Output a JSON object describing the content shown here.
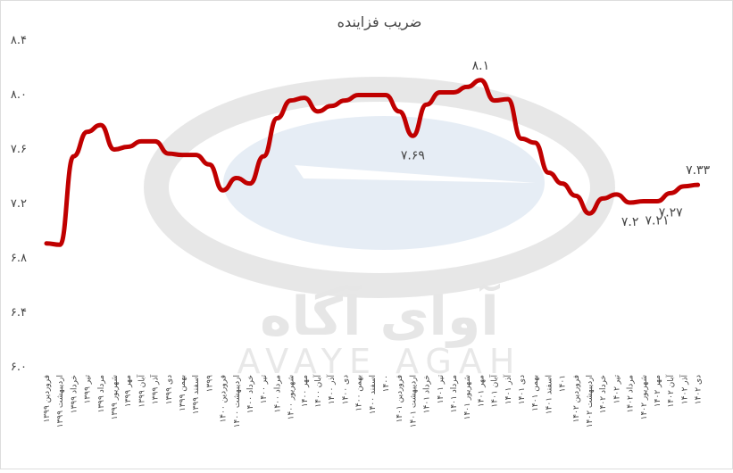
{
  "chart_data": {
    "type": "line",
    "title": "ضریب فزاینده",
    "watermark": [
      "آوای آگاه",
      "AVAYE AGAH"
    ],
    "categories": [
      "فروردین ۱۳۹۹",
      "اردیبهشت ۱۳۹۹",
      "خرداد ۱۳۹۹",
      "تیر ۱۳۹۹",
      "مرداد ۱۳۹۹",
      "شهریور ۱۳۹۹",
      "مهر ۱۳۹۹",
      "آبان ۱۳۹۹",
      "آذر ۱۳۹۹",
      "دی ۱۳۹۹",
      "بهمن ۱۳۹۹",
      "اسفند ۱۳۹۹",
      "۱۳۹۹",
      "فروردین ۱۴۰۰",
      "اردیبهشت ۱۴۰۰",
      "خرداد ۱۴۰۰",
      "تیر ۱۴۰۰",
      "مرداد ۱۴۰۰",
      "شهریور ۱۴۰۰",
      "مهر ۱۴۰۰",
      "آبان ۱۴۰۰",
      "آذر ۱۴۰۰",
      "دی ۱۴۰۰",
      "بهمن ۱۴۰۰",
      "اسفند ۱۴۰۰",
      "۱۴۰۰",
      "فروردین ۱۴۰۱",
      "اردیبهشت ۱۴۰۱",
      "خرداد ۱۴۰۱",
      "تیر ۱۴۰۱",
      "مرداد ۱۴۰۱",
      "شهریور ۱۴۰۱",
      "مهر ۱۴۰۱",
      "آبان ۱۴۰۱",
      "آذر ۱۴۰۱",
      "دی ۱۴۰۱",
      "بهمن ۱۴۰۱",
      "اسفند ۱۴۰۱",
      "۱۴۰۱",
      "فروردین ۱۴۰۲",
      "اردیبهشت ۱۴۰۲",
      "خرداد ۱۴۰۲",
      "تیر ۱۴۰۲",
      "مرداد ۱۴۰۲",
      "شهریور ۱۴۰۲",
      "مهر ۱۴۰۲",
      "آبان ۱۴۰۲",
      "آذر ۱۴۰۲",
      "دی ۱۴۰۲"
    ],
    "values": [
      6.9,
      6.89,
      7.54,
      7.72,
      7.77,
      7.59,
      7.61,
      7.65,
      7.65,
      7.56,
      7.55,
      7.55,
      7.48,
      7.29,
      7.38,
      7.34,
      7.54,
      7.82,
      7.95,
      7.97,
      7.87,
      7.91,
      7.95,
      7.99,
      7.99,
      7.99,
      7.87,
      7.69,
      7.92,
      8.01,
      8.01,
      8.05,
      8.1,
      7.95,
      7.96,
      7.67,
      7.64,
      7.42,
      7.34,
      7.25,
      7.12,
      7.23,
      7.26,
      7.2,
      7.21,
      7.21,
      7.27,
      7.32,
      7.33
    ],
    "value_labels": [
      null,
      null,
      null,
      null,
      null,
      null,
      null,
      null,
      null,
      null,
      null,
      null,
      null,
      null,
      null,
      null,
      null,
      null,
      null,
      null,
      null,
      null,
      null,
      null,
      null,
      null,
      null,
      "۷.۶۹",
      null,
      null,
      null,
      null,
      "۸.۱",
      null,
      null,
      null,
      null,
      null,
      null,
      null,
      null,
      null,
      null,
      "۷.۲",
      null,
      "۷.۲۱",
      "۷.۲۷",
      null,
      "۷.۳۳"
    ],
    "color": "#c00000",
    "ylim": [
      6.0,
      8.4
    ],
    "yticks": [
      {
        "value": 6.0,
        "label": "۶.۰"
      },
      {
        "value": 6.4,
        "label": "۶.۴"
      },
      {
        "value": 6.8,
        "label": "۶.۸"
      },
      {
        "value": 7.2,
        "label": "۷.۲"
      },
      {
        "value": 7.6,
        "label": "۷.۶"
      },
      {
        "value": 8.0,
        "label": "۸.۰"
      },
      {
        "value": 8.4,
        "label": "۸.۴"
      }
    ],
    "grid": false
  }
}
